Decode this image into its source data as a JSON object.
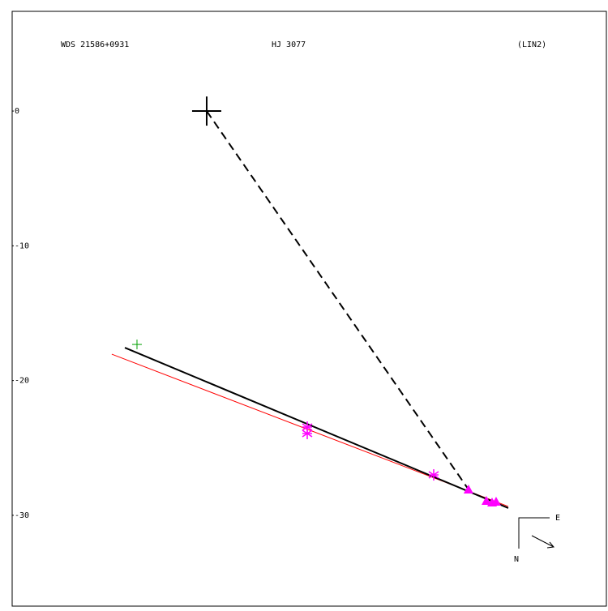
{
  "chart_data": {
    "type": "scatter",
    "titles": [
      "WDS 21586+0931",
      "HJ 3077",
      "(LIN2)"
    ],
    "xlim": [
      -14.43,
      29.65
    ],
    "ylim": [
      -36.74,
      7.4
    ],
    "yticks": [
      0,
      -10,
      -20,
      -30
    ],
    "series": [
      {
        "marker": "big-plus",
        "color": "#000000",
        "x": [
          0
        ],
        "y": [
          0
        ]
      },
      {
        "marker": "plus",
        "color": "#00a000",
        "x": [
          -5.17
        ],
        "y": [
          -17.32
        ]
      },
      {
        "marker": "asterisk",
        "color": "#ff00ff",
        "x": [
          7.46,
          7.46,
          16.84
        ],
        "y": [
          -23.45,
          -23.93,
          -27.0
        ]
      },
      {
        "marker": "triangle",
        "color": "#ff00ff",
        "x": [
          19.42,
          20.75,
          21.17,
          21.47
        ],
        "y": [
          -28.08,
          -28.92,
          -29.04,
          -28.98
        ]
      }
    ],
    "lines": [
      {
        "color": "#ff0000",
        "dash": false,
        "width": 1,
        "x": [
          -7.04,
          22.37
        ],
        "y": [
          -18.04,
          -29.34
        ]
      },
      {
        "color": "#000000",
        "dash": false,
        "width": 2,
        "x": [
          -6.07,
          22.37
        ],
        "y": [
          -17.56,
          -29.46
        ]
      },
      {
        "color": "#000000",
        "dash": true,
        "width": 2,
        "x": [
          0,
          19.42
        ],
        "y": [
          0,
          -28.08
        ]
      }
    ],
    "compass": {
      "east": "E",
      "north": "N"
    }
  }
}
